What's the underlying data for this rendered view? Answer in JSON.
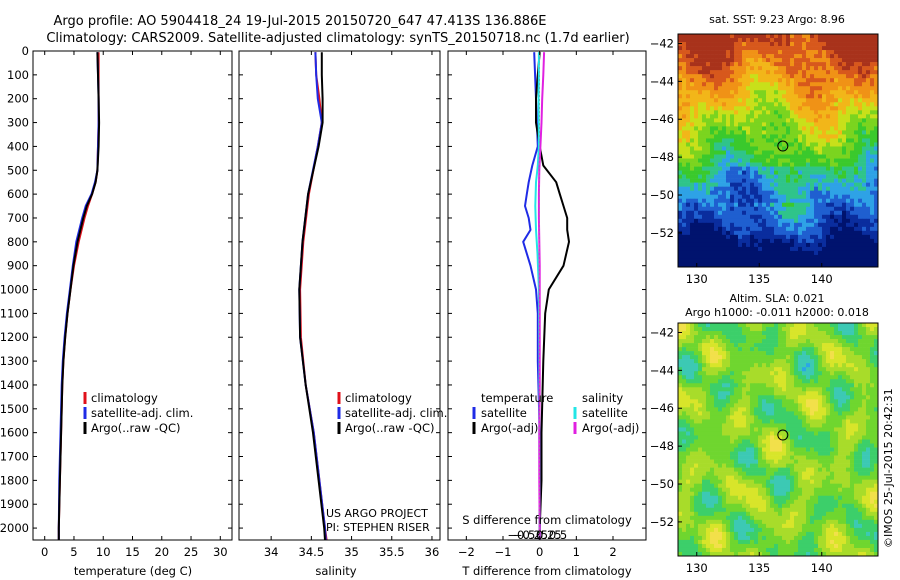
{
  "title": {
    "line1": "Argo profile: AO 5904418_24 19-Jul-2015 20150720_647 47.413S 136.886E",
    "line2": "Climatology: CARS2009. Satellite-adjusted climatology: synTS_20150718.nc (1.7d earlier)"
  },
  "colors": {
    "climatology": "#e0101a",
    "satellite": "#1f2be6",
    "argo": "#000000",
    "sat_salinity": "#22e6e6",
    "argo_salinity": "#e020e0"
  },
  "credits": {
    "project": "US ARGO PROJECT",
    "pi": "PI: STEPHEN RISER",
    "stamp": "©IMOS 25-Jul-2015 20:42:31"
  },
  "chart_data": [
    {
      "name": "temperature-profile",
      "type": "line",
      "xlabel": "temperature (deg C)",
      "ylabel": "",
      "xlim": [
        -2,
        32
      ],
      "ylim": [
        2050,
        0
      ],
      "xticks": [
        0,
        5,
        10,
        15,
        20,
        25,
        30
      ],
      "yticks": [
        0,
        100,
        200,
        300,
        400,
        500,
        600,
        700,
        800,
        900,
        1000,
        1100,
        1200,
        1300,
        1400,
        1500,
        1600,
        1700,
        1800,
        1900,
        2000
      ],
      "legend": {
        "placement": "bottom-right",
        "entries": [
          "climatology",
          "satellite-adj. clim.",
          "Argo(..raw -QC)"
        ]
      },
      "series": [
        {
          "name": "climatology",
          "color": "#e0101a",
          "depth": [
            5,
            100,
            200,
            300,
            400,
            500,
            550,
            600,
            650,
            700,
            800,
            900,
            1000,
            1100,
            1200,
            1300,
            1400,
            1600,
            1800,
            2000,
            2050
          ],
          "values": [
            9.2,
            9.2,
            9.2,
            9.2,
            9.1,
            9.0,
            8.7,
            8.1,
            7.4,
            6.8,
            5.8,
            5.0,
            4.4,
            3.9,
            3.5,
            3.2,
            3.0,
            2.8,
            2.6,
            2.4,
            2.4
          ]
        },
        {
          "name": "satellite-adj. clim.",
          "color": "#1f2be6",
          "depth": [
            5,
            100,
            200,
            300,
            400,
            500,
            550,
            600,
            650,
            700,
            800,
            900,
            1000,
            1100,
            1200,
            1300,
            1400,
            1600,
            1800,
            2000,
            2050
          ],
          "values": [
            9.0,
            9.1,
            9.2,
            9.2,
            9.1,
            9.0,
            8.6,
            8.0,
            7.0,
            6.4,
            5.4,
            4.8,
            4.3,
            3.8,
            3.4,
            3.1,
            2.9,
            2.7,
            2.5,
            2.4,
            2.4
          ]
        },
        {
          "name": "Argo(..raw -QC)",
          "color": "#000000",
          "depth": [
            5,
            100,
            200,
            300,
            400,
            500,
            550,
            600,
            650,
            700,
            800,
            900,
            1000,
            1100,
            1200,
            1300,
            1400,
            1600,
            1800,
            2000,
            2050
          ],
          "values": [
            9.0,
            9.1,
            9.2,
            9.3,
            9.2,
            9.0,
            8.7,
            8.1,
            7.2,
            6.6,
            5.6,
            4.9,
            4.4,
            3.9,
            3.5,
            3.2,
            3.0,
            2.8,
            2.6,
            2.4,
            2.4
          ]
        }
      ]
    },
    {
      "name": "salinity-profile",
      "type": "line",
      "xlabel": "salinity",
      "ylabel": "",
      "xlim": [
        33.6,
        36.1
      ],
      "ylim": [
        2050,
        0
      ],
      "xticks": [
        34,
        34.5,
        35,
        35.5,
        36
      ],
      "legend": {
        "placement": "bottom-right",
        "entries": [
          "climatology",
          "satellite-adj. clim.",
          "Argo(..raw -QC)"
        ]
      },
      "series": [
        {
          "name": "climatology",
          "color": "#e0101a",
          "depth": [
            5,
            100,
            200,
            300,
            400,
            600,
            800,
            1000,
            1200,
            1400,
            1600,
            1800,
            2000,
            2050
          ],
          "values": [
            34.55,
            34.56,
            34.6,
            34.63,
            34.58,
            34.47,
            34.4,
            34.36,
            34.37,
            34.43,
            34.53,
            34.6,
            34.67,
            34.69
          ]
        },
        {
          "name": "satellite-adj. clim.",
          "color": "#1f2be6",
          "depth": [
            5,
            100,
            200,
            300,
            400,
            600,
            800,
            1000,
            1200,
            1400,
            1600,
            1800,
            2000,
            2050
          ],
          "values": [
            34.55,
            34.56,
            34.58,
            34.63,
            34.58,
            34.46,
            34.39,
            34.35,
            34.36,
            34.43,
            34.53,
            34.6,
            34.67,
            34.68
          ]
        },
        {
          "name": "Argo(..raw -QC)",
          "color": "#000000",
          "depth": [
            5,
            100,
            200,
            300,
            400,
            600,
            800,
            1000,
            1200,
            1400,
            1600,
            1800,
            2000,
            2050
          ],
          "values": [
            34.63,
            34.63,
            34.64,
            34.64,
            34.59,
            34.46,
            34.39,
            34.35,
            34.36,
            34.43,
            34.52,
            34.59,
            34.66,
            34.67
          ]
        }
      ]
    },
    {
      "name": "difference-profile",
      "type": "line",
      "xlabel": "T difference from climatology",
      "x2label": "S difference from climatology",
      "ylabel": "",
      "xlim": [
        -2.5,
        2.9
      ],
      "ylim": [
        2050,
        0
      ],
      "xticks": [
        -2,
        -1,
        0,
        1,
        2
      ],
      "x2ticks": [
        -0.5,
        -0.25,
        0,
        0.25,
        0.5
      ],
      "legend": {
        "placement": "bottom",
        "temperature_title": "temperature",
        "salinity_title": "salinity",
        "entries": [
          "satellite",
          "Argo(-adj)",
          "satellite",
          "Argo(-adj)"
        ]
      },
      "series": [
        {
          "name": "T satellite",
          "color": "#1f2be6",
          "depth": [
            5,
            200,
            400,
            480,
            550,
            600,
            650,
            700,
            750,
            800,
            900,
            1000,
            1100,
            1300,
            1600,
            1800,
            2000,
            2050
          ],
          "values": [
            -0.15,
            -0.1,
            -0.05,
            -0.2,
            -0.3,
            -0.35,
            -0.4,
            -0.3,
            -0.25,
            -0.45,
            -0.25,
            -0.1,
            -0.05,
            -0.05,
            0.0,
            0.0,
            0.0,
            0.0
          ]
        },
        {
          "name": "T Argo(-adj)",
          "color": "#000000",
          "depth": [
            5,
            100,
            200,
            300,
            400,
            480,
            550,
            600,
            650,
            700,
            750,
            800,
            900,
            1000,
            1100,
            1300,
            1600,
            1800,
            2000,
            2050
          ],
          "values": [
            0.0,
            -0.05,
            -0.1,
            -0.1,
            0.0,
            0.1,
            0.45,
            0.55,
            0.65,
            0.75,
            0.75,
            0.8,
            0.65,
            0.25,
            0.15,
            0.1,
            0.05,
            0.05,
            0.0,
            0.0
          ]
        },
        {
          "name": "S satellite",
          "color": "#22e6e6",
          "depth": [
            5,
            100,
            200,
            400,
            480,
            550,
            650,
            750,
            850,
            1000,
            1300,
            1600,
            2000,
            2050
          ],
          "values": [
            -0.02,
            -0.02,
            -0.03,
            -0.02,
            -0.05,
            -0.1,
            -0.12,
            -0.1,
            -0.06,
            -0.02,
            -0.01,
            -0.01,
            0.0,
            0.0
          ]
        },
        {
          "name": "S Argo(-adj)",
          "color": "#e020e0",
          "depth": [
            5,
            100,
            200,
            300,
            400,
            500,
            600,
            700,
            800,
            900,
            1000,
            1200,
            1400,
            1600,
            1800,
            2000,
            2050
          ],
          "values": [
            0.12,
            0.1,
            0.07,
            0.05,
            0.02,
            -0.01,
            -0.02,
            -0.02,
            -0.01,
            0.0,
            0.0,
            0.0,
            0.0,
            -0.01,
            -0.01,
            0.0,
            0.0
          ]
        }
      ]
    },
    {
      "name": "sst-map",
      "type": "heatmap",
      "title": "sat. SST: 9.23  Argo: 8.96",
      "xlim": [
        128.5,
        144.5
      ],
      "ylim": [
        -53.8,
        -41.5
      ],
      "xticks": [
        130,
        135,
        140
      ],
      "yticks": [
        -42,
        -44,
        -46,
        -48,
        -50,
        -52
      ],
      "marker": {
        "lon": 136.886,
        "lat": -47.413
      },
      "colors": [
        "#00136e",
        "#0a2d9e",
        "#1f5fd0",
        "#2ea2e6",
        "#2fc48a",
        "#3ac92c",
        "#7bd41f",
        "#c8e01a",
        "#f2b619",
        "#f09216",
        "#d7581c",
        "#a8321b"
      ]
    },
    {
      "name": "sla-map",
      "type": "heatmap",
      "title": "Altim. SLA: 0.021",
      "subtitle": "Argo h1000: -0.011  h2000: 0.018",
      "xlim": [
        128.5,
        144.5
      ],
      "ylim": [
        -53.8,
        -41.5
      ],
      "xticks": [
        130,
        135,
        140
      ],
      "yticks": [
        -42,
        -44,
        -46,
        -48,
        -50,
        -52
      ],
      "marker": {
        "lon": 136.886,
        "lat": -47.413
      },
      "colors": [
        "#2aa7e6",
        "#3cc9b4",
        "#3ccf6a",
        "#6fd62f",
        "#a8dc2a",
        "#d8e52a",
        "#f2e04a"
      ]
    }
  ]
}
